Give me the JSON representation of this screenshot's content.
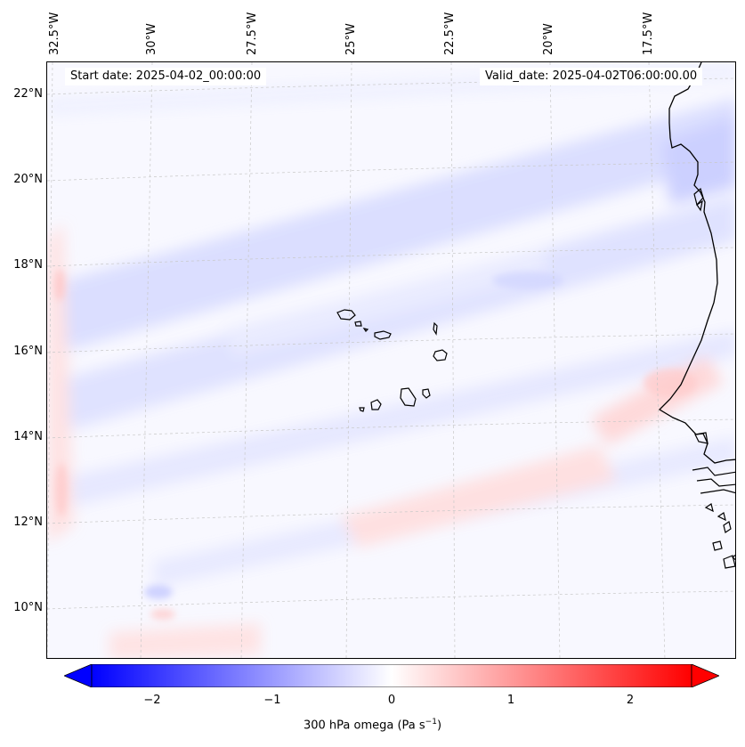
{
  "header": {
    "start_date": "Start date: 2025-04-02_00:00:00",
    "valid_date": "Valid_date: 2025-04-02T06:00:00.00"
  },
  "axes": {
    "longitude_labels": [
      "32.5°W",
      "30°W",
      "27.5°W",
      "25°W",
      "22.5°W",
      "20°W",
      "17.5°W"
    ],
    "latitude_labels": [
      "22°N",
      "20°N",
      "18°N",
      "16°N",
      "14°N",
      "12°N",
      "10°N"
    ]
  },
  "colorbar": {
    "ticks": [
      "−2",
      "−1",
      "0",
      "1",
      "2"
    ],
    "label_main": "300 hPa omega (Pa s",
    "label_exp": "−1",
    "label_close": ")",
    "range": [
      -2.5,
      2.5
    ],
    "colormap": "bwr",
    "extend": "both",
    "colors": {
      "low": "#0000ff",
      "mid": "#ffffff",
      "high": "#ff0000"
    }
  },
  "map": {
    "field": "300 hPa omega",
    "coastline_color": "#000000",
    "gridlines": "dashed-gray"
  }
}
